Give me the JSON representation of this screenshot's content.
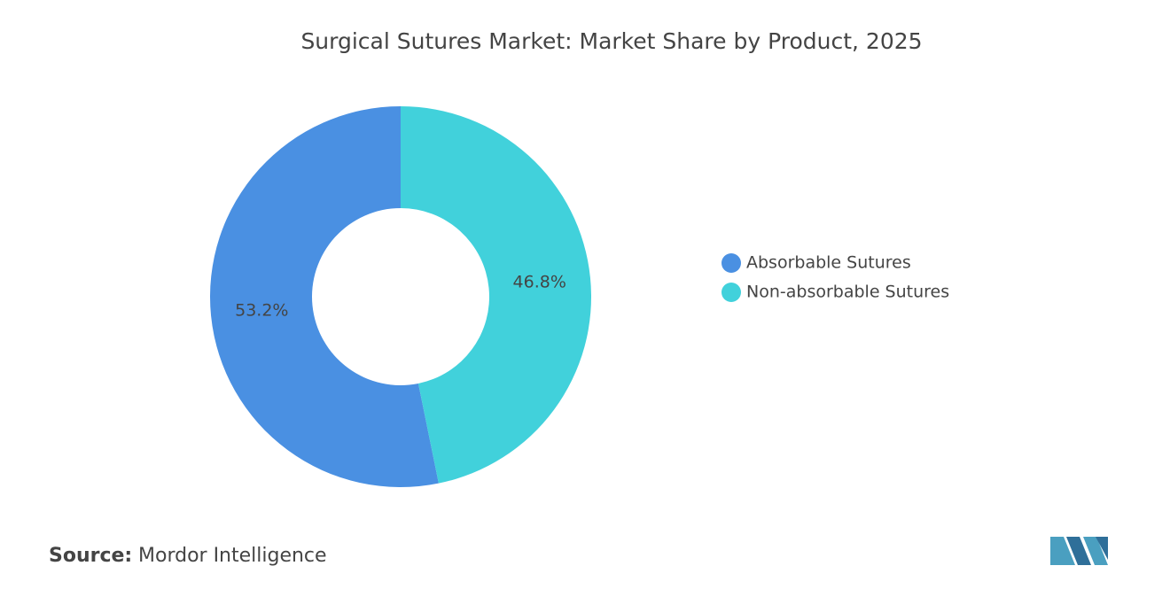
{
  "chart_data": {
    "type": "donut",
    "title": "Surgical Sutures Market: Market Share by Product, 2025",
    "categories": [
      "Absorbable Sutures",
      "Non-absorbable Sutures"
    ],
    "values": [
      53.2,
      46.8
    ],
    "value_labels": [
      "53.2%",
      "46.8%"
    ],
    "colors": [
      "#4a90e2",
      "#41d1db"
    ],
    "legend": "right"
  },
  "footer": {
    "source_label": "Source:",
    "source": "Mordor Intelligence"
  }
}
